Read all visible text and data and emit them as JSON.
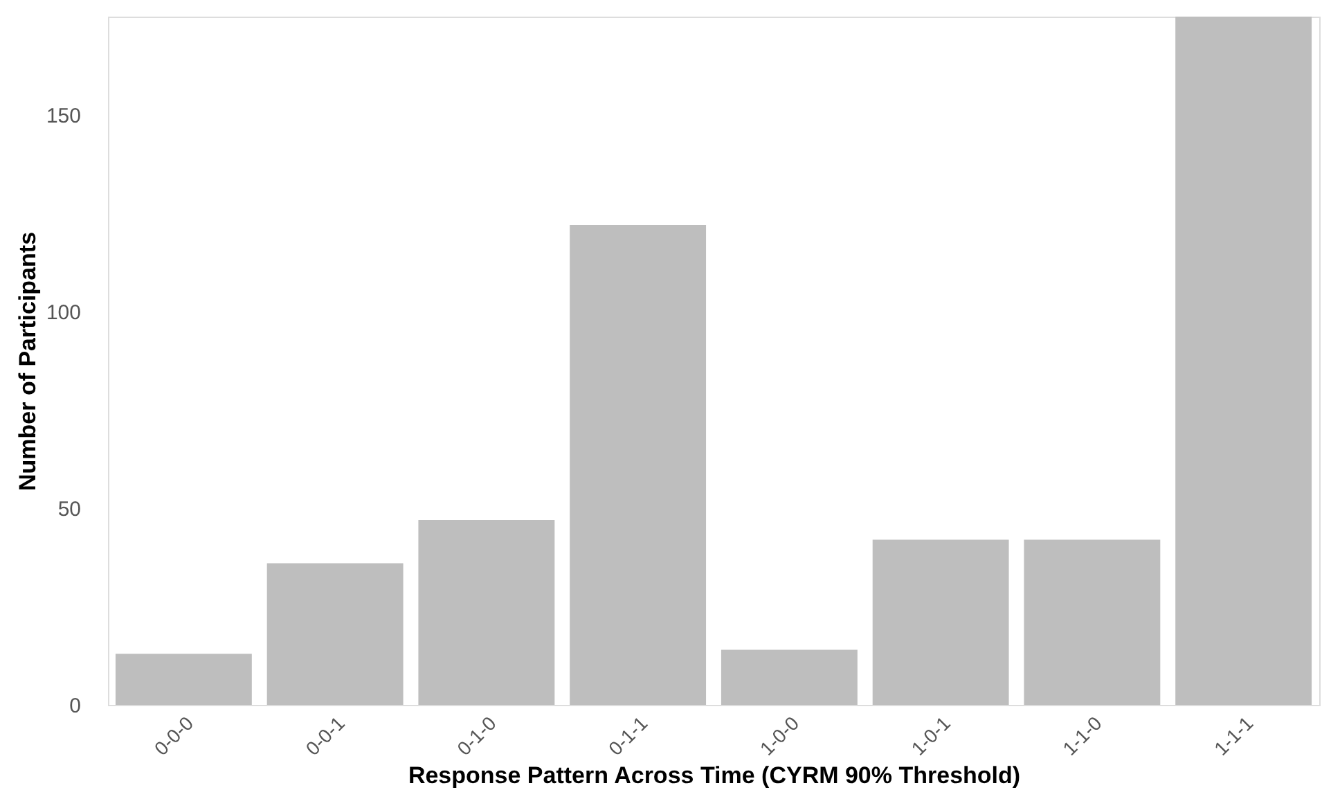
{
  "chart_data": {
    "type": "bar",
    "xlabel": "Response Pattern Across Time (CYRM 90% Threshold)",
    "ylabel": "Number of Participants",
    "categories": [
      "0-0-0",
      "0-0-1",
      "0-1-0",
      "0-1-1",
      "1-0-0",
      "1-0-1",
      "1-1-0",
      "1-1-1"
    ],
    "values": [
      13,
      36,
      47,
      122,
      14,
      42,
      42,
      175
    ],
    "color": "#bebebe",
    "ylim": [
      0,
      175
    ],
    "yticks": [
      0,
      50,
      100,
      150
    ],
    "grid": false
  }
}
